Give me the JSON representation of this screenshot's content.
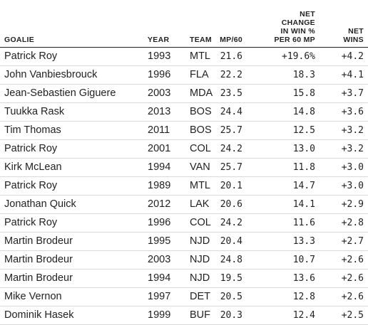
{
  "columns": {
    "goalie": "GOALIE",
    "year": "YEAR",
    "team": "TEAM",
    "mp60": "MP/60",
    "net_change": "NET\nCHANGE\nIN WIN %\nPER 60 MP",
    "net_wins": "NET\nWINS"
  },
  "rows": [
    {
      "goalie": "Patrick Roy",
      "year": "1993",
      "team": "MTL",
      "mp60": "21.6",
      "net_change": "+19.6%",
      "net_wins": "+4.2"
    },
    {
      "goalie": "John Vanbiesbrouck",
      "year": "1996",
      "team": "FLA",
      "mp60": "22.2",
      "net_change": "18.3",
      "net_wins": "+4.1"
    },
    {
      "goalie": "Jean-Sebastien Giguere",
      "year": "2003",
      "team": "MDA",
      "mp60": "23.5",
      "net_change": "15.8",
      "net_wins": "+3.7"
    },
    {
      "goalie": "Tuukka Rask",
      "year": "2013",
      "team": "BOS",
      "mp60": "24.4",
      "net_change": "14.8",
      "net_wins": "+3.6"
    },
    {
      "goalie": "Tim Thomas",
      "year": "2011",
      "team": "BOS",
      "mp60": "25.7",
      "net_change": "12.5",
      "net_wins": "+3.2"
    },
    {
      "goalie": "Patrick Roy",
      "year": "2001",
      "team": "COL",
      "mp60": "24.2",
      "net_change": "13.0",
      "net_wins": "+3.2"
    },
    {
      "goalie": "Kirk McLean",
      "year": "1994",
      "team": "VAN",
      "mp60": "25.7",
      "net_change": "11.8",
      "net_wins": "+3.0"
    },
    {
      "goalie": "Patrick Roy",
      "year": "1989",
      "team": "MTL",
      "mp60": "20.1",
      "net_change": "14.7",
      "net_wins": "+3.0"
    },
    {
      "goalie": "Jonathan Quick",
      "year": "2012",
      "team": "LAK",
      "mp60": "20.6",
      "net_change": "14.1",
      "net_wins": "+2.9"
    },
    {
      "goalie": "Patrick Roy",
      "year": "1996",
      "team": "COL",
      "mp60": "24.2",
      "net_change": "11.6",
      "net_wins": "+2.8"
    },
    {
      "goalie": "Martin Brodeur",
      "year": "1995",
      "team": "NJD",
      "mp60": "20.4",
      "net_change": "13.3",
      "net_wins": "+2.7"
    },
    {
      "goalie": "Martin Brodeur",
      "year": "2003",
      "team": "NJD",
      "mp60": "24.8",
      "net_change": "10.7",
      "net_wins": "+2.6"
    },
    {
      "goalie": "Martin Brodeur",
      "year": "1994",
      "team": "NJD",
      "mp60": "19.5",
      "net_change": "13.6",
      "net_wins": "+2.6"
    },
    {
      "goalie": "Mike Vernon",
      "year": "1997",
      "team": "DET",
      "mp60": "20.5",
      "net_change": "12.8",
      "net_wins": "+2.6"
    },
    {
      "goalie": "Dominik Hasek",
      "year": "1999",
      "team": "BUF",
      "mp60": "20.3",
      "net_change": "12.4",
      "net_wins": "+2.5"
    }
  ]
}
